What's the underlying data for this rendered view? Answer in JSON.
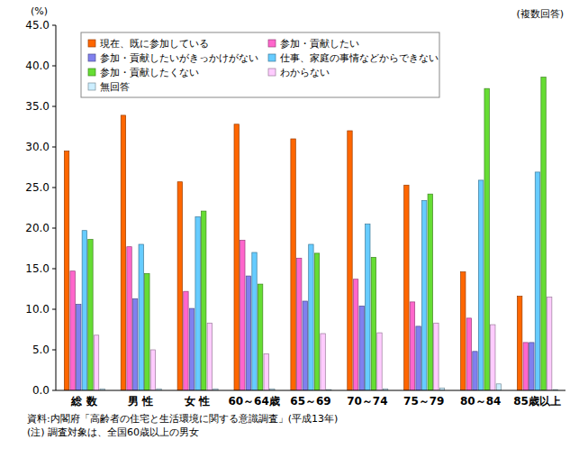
{
  "chart_data": {
    "type": "bar",
    "ylabel": "(%)",
    "annotations": [
      "(複数回答)"
    ],
    "footnotes": [
      "資料:内閣府「高齢者の住宅と生活環境に関する意識調査」(平成13年)",
      "(注) 調査対象は、全国60歳以上の男女"
    ],
    "categories": [
      "総 数",
      "男 性",
      "女 性",
      "60～64歳",
      "65～69",
      "70～74",
      "75～79",
      "80～84",
      "85歳以上"
    ],
    "series": [
      {
        "name": "現在、既に参加している",
        "color": "#ff6600",
        "values": [
          29.5,
          33.9,
          25.7,
          32.8,
          31.0,
          32.0,
          25.3,
          14.6,
          11.6
        ]
      },
      {
        "name": "参加・貢献したい",
        "color": "#ff66cc",
        "values": [
          14.7,
          17.7,
          12.2,
          18.5,
          16.3,
          13.7,
          10.9,
          8.9,
          5.9
        ]
      },
      {
        "name": "参加・貢献したいがきっかけがない",
        "color": "#8080ee",
        "values": [
          10.6,
          11.3,
          10.1,
          14.1,
          11.0,
          10.4,
          7.9,
          4.8,
          5.9
        ]
      },
      {
        "name": "仕事、家庭の事情などからできない",
        "color": "#66ccff",
        "values": [
          19.7,
          18.0,
          21.4,
          17.0,
          18.0,
          20.5,
          23.4,
          25.9,
          26.9
        ]
      },
      {
        "name": "参加・貢献したくない",
        "color": "#66dd33",
        "values": [
          18.6,
          14.4,
          22.1,
          13.1,
          16.9,
          16.4,
          24.2,
          37.2,
          38.6
        ]
      },
      {
        "name": "わからない",
        "color": "#ffccff",
        "values": [
          6.8,
          5.0,
          8.3,
          4.5,
          7.0,
          7.1,
          8.3,
          8.1,
          11.5
        ]
      },
      {
        "name": "無回答",
        "color": "#cceeff",
        "values": [
          0.2,
          0.2,
          0.2,
          0.2,
          0.1,
          0.2,
          0.3,
          0.8,
          0.1
        ]
      }
    ],
    "ylim": [
      0,
      45
    ],
    "yticks": [
      {
        "value": 0,
        "label": "0.0"
      },
      {
        "value": 5,
        "label": "5.0"
      },
      {
        "value": 10,
        "label": "10.0"
      },
      {
        "value": 15,
        "label": "15.0"
      },
      {
        "value": 20,
        "label": "20.0"
      },
      {
        "value": 25,
        "label": "25.0"
      },
      {
        "value": 30,
        "label": "30.0"
      },
      {
        "value": 35,
        "label": "35.0"
      },
      {
        "value": 40,
        "label": "40.0"
      },
      {
        "value": 45,
        "label": "45.0"
      }
    ],
    "grid": false,
    "legend": "upper left"
  }
}
